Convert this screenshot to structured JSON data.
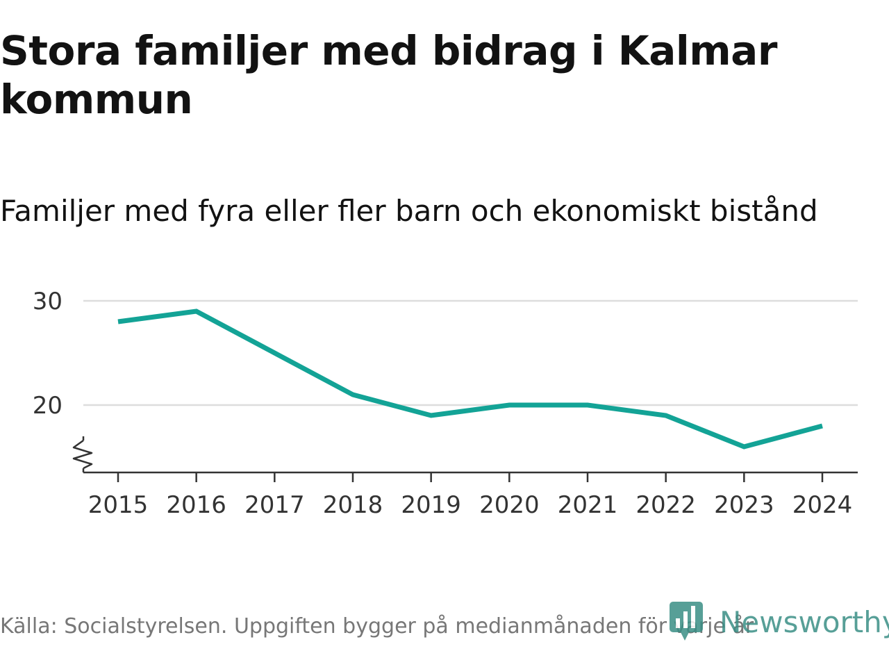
{
  "title": "Stora familjer med bidrag i Kalmar kommun",
  "subtitle": "Familjer med fyra eller fler barn och ekonomiskt bistånd",
  "source": "Källa: Socialstyrelsen. Uppgiften bygger på medianmånaden för varje år",
  "brand": {
    "name": "Newsworthy",
    "icon": "newsworthy-logo-icon",
    "color": "#3a8f86"
  },
  "colors": {
    "line": "#13a396",
    "grid": "#dddddd",
    "axis": "#333333"
  },
  "chart_data": {
    "type": "line",
    "title": "Stora familjer med bidrag i Kalmar kommun",
    "subtitle": "Familjer med fyra eller fler barn och ekonomiskt bistånd",
    "xlabel": "",
    "ylabel": "",
    "categories": [
      "2015",
      "2016",
      "2017",
      "2018",
      "2019",
      "2020",
      "2021",
      "2022",
      "2023",
      "2024"
    ],
    "series": [
      {
        "name": "Familjer med fyra eller fler barn och ekonomiskt bistånd",
        "values": [
          28,
          29,
          25,
          21,
          19,
          20,
          20,
          19,
          16,
          18
        ]
      }
    ],
    "yticks": [
      20,
      30
    ],
    "ylim": [
      13.5,
      30
    ],
    "grid": true,
    "axis_break": true,
    "legend": "none"
  }
}
